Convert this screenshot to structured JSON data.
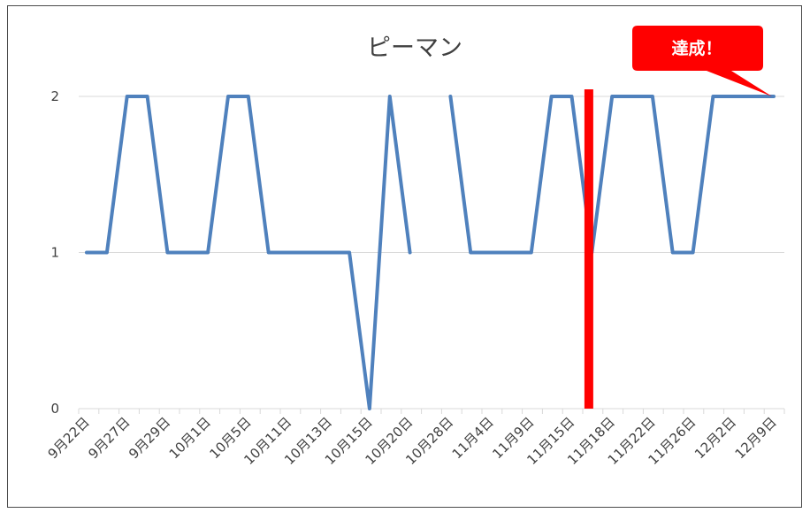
{
  "chart_data": {
    "type": "line",
    "title": "ピーマン",
    "xlabel": "",
    "ylabel": "",
    "ylim": [
      0,
      2
    ],
    "yticks": [
      "0",
      "1",
      "2"
    ],
    "grid": true,
    "x_tick_labels": [
      "9月22日",
      "9月27日",
      "9月29日",
      "10月1日",
      "10月5日",
      "10月11日",
      "10月13日",
      "10月15日",
      "10月20日",
      "10月28日",
      "11月4日",
      "11月9日",
      "11月15日",
      "11月18日",
      "11月22日",
      "11月26日",
      "12月2日",
      "12月9日"
    ],
    "series": [
      {
        "color": "#4f81bd",
        "values": [
          1,
          1,
          2,
          2,
          1,
          1,
          1,
          2,
          2,
          1,
          1,
          1,
          1,
          1,
          0,
          2,
          1,
          null,
          2,
          1,
          1,
          1,
          1,
          2,
          2,
          1,
          2,
          2,
          2,
          1,
          1,
          2,
          2,
          2,
          2
        ]
      }
    ],
    "marker": {
      "color": "#ff0000",
      "after_tick": "11月15日"
    },
    "annotation": {
      "text": "達成！",
      "color": "#ff0000"
    }
  }
}
